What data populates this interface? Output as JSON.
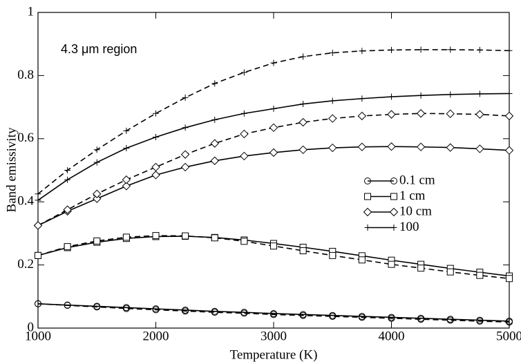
{
  "chart_data": {
    "type": "line",
    "annotation": "4.3 μm region",
    "x_label": "Temperature (K)",
    "y_label": "Band emissivity",
    "x": [
      1000,
      1250,
      1500,
      1750,
      2000,
      2250,
      2500,
      2750,
      3000,
      3250,
      3500,
      3750,
      4000,
      4250,
      4500,
      4750,
      5000
    ],
    "xlim": [
      1000,
      5000
    ],
    "xticks": [
      1000,
      2000,
      3000,
      4000,
      5000
    ],
    "ylim": [
      0,
      1
    ],
    "yticks": [
      0,
      0.2,
      0.4,
      0.6,
      0.8,
      1
    ],
    "series": [
      {
        "name": "0.1 cm",
        "marker": "circle",
        "color": "#000000",
        "values": [
          0.077,
          0.073,
          0.069,
          0.065,
          0.061,
          0.057,
          0.053,
          0.05,
          0.046,
          0.043,
          0.04,
          0.037,
          0.034,
          0.031,
          0.028,
          0.025,
          0.022
        ],
        "values_dashed": [
          0.077,
          0.072,
          0.067,
          0.062,
          0.058,
          0.054,
          0.05,
          0.047,
          0.043,
          0.04,
          0.037,
          0.034,
          0.031,
          0.028,
          0.025,
          0.022,
          0.019
        ]
      },
      {
        "name": "1 cm",
        "marker": "square",
        "color": "#000000",
        "values": [
          0.23,
          0.255,
          0.272,
          0.284,
          0.29,
          0.291,
          0.287,
          0.279,
          0.268,
          0.256,
          0.243,
          0.229,
          0.215,
          0.202,
          0.189,
          0.177,
          0.165
        ],
        "values_dashed": [
          0.23,
          0.258,
          0.276,
          0.288,
          0.293,
          0.292,
          0.286,
          0.275,
          0.26,
          0.245,
          0.23,
          0.216,
          0.202,
          0.19,
          0.178,
          0.167,
          0.157
        ]
      },
      {
        "name": "10 cm",
        "marker": "diamond",
        "color": "#000000",
        "values": [
          0.325,
          0.37,
          0.41,
          0.45,
          0.485,
          0.51,
          0.53,
          0.545,
          0.556,
          0.565,
          0.571,
          0.574,
          0.575,
          0.574,
          0.572,
          0.568,
          0.563
        ],
        "values_dashed": [
          0.325,
          0.375,
          0.425,
          0.47,
          0.51,
          0.55,
          0.585,
          0.615,
          0.635,
          0.652,
          0.664,
          0.672,
          0.677,
          0.68,
          0.679,
          0.677,
          0.672
        ]
      },
      {
        "name": "100",
        "marker": "plus",
        "color": "#000000",
        "values": [
          0.405,
          0.47,
          0.525,
          0.57,
          0.605,
          0.635,
          0.66,
          0.68,
          0.695,
          0.71,
          0.72,
          0.727,
          0.733,
          0.737,
          0.74,
          0.742,
          0.743
        ],
        "values_dashed": [
          0.425,
          0.5,
          0.565,
          0.625,
          0.68,
          0.73,
          0.775,
          0.81,
          0.84,
          0.86,
          0.872,
          0.878,
          0.881,
          0.882,
          0.882,
          0.881,
          0.879
        ]
      }
    ]
  }
}
